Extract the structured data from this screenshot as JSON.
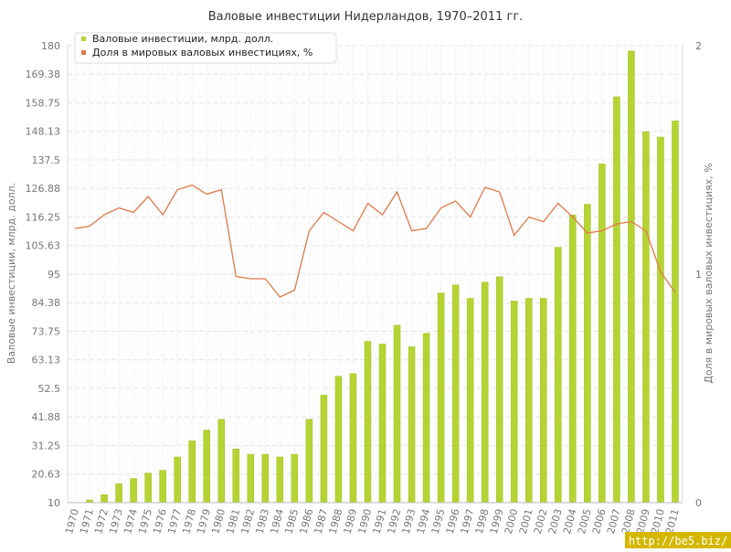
{
  "chart_data": {
    "type": "bar",
    "title": "Валовые инвестиции Нидерландов, 1970–2011 гг.",
    "xlabel": "",
    "ylabel": "Валовые инвестиции, млрд. долл.",
    "y2label": "Доля в мировых валовых инвестициях, %",
    "categories": [
      "1970",
      "1971",
      "1972",
      "1973",
      "1974",
      "1975",
      "1976",
      "1977",
      "1978",
      "1979",
      "1980",
      "1981",
      "1982",
      "1983",
      "1984",
      "1985",
      "1986",
      "1987",
      "1988",
      "1989",
      "1990",
      "1991",
      "1992",
      "1993",
      "1994",
      "1995",
      "1996",
      "1997",
      "1998",
      "1999",
      "2000",
      "2001",
      "2002",
      "2003",
      "2004",
      "2005",
      "2006",
      "2007",
      "2008",
      "2009",
      "2010",
      "2011"
    ],
    "ylim": [
      10,
      180
    ],
    "y2lim": [
      0,
      2
    ],
    "yticks": [
      "10",
      "20.63",
      "31.25",
      "41.88",
      "52.5",
      "63.13",
      "73.75",
      "84.38",
      "95",
      "105.63",
      "116.25",
      "126.88",
      "137.5",
      "148.13",
      "158.75",
      "169.38",
      "180"
    ],
    "y2ticks": [
      "0",
      "1",
      "2"
    ],
    "grid": true,
    "legend_position": "top-left",
    "series": [
      {
        "name": "Валовые инвестиции, млрд. долл.",
        "type": "bar",
        "axis": "left",
        "color": "#b5d433",
        "values": [
          9,
          11,
          13,
          17,
          19,
          21,
          22,
          27,
          33,
          37,
          41,
          30,
          28,
          28,
          27,
          28,
          41,
          50,
          57,
          58,
          70,
          69,
          76,
          68,
          73,
          88,
          91,
          86,
          92,
          94,
          85,
          86,
          86,
          105,
          117,
          121,
          136,
          161,
          178,
          148,
          146,
          152
        ]
      },
      {
        "name": "Доля в мировых валовых инвестициях, %",
        "type": "line",
        "axis": "right",
        "color": "#e07a4a",
        "values": [
          1.2,
          1.21,
          1.26,
          1.29,
          1.27,
          1.34,
          1.26,
          1.37,
          1.39,
          1.35,
          1.37,
          0.99,
          0.98,
          0.98,
          0.9,
          0.93,
          1.19,
          1.27,
          1.23,
          1.19,
          1.31,
          1.26,
          1.36,
          1.19,
          1.2,
          1.29,
          1.32,
          1.25,
          1.38,
          1.36,
          1.17,
          1.25,
          1.23,
          1.31,
          1.25,
          1.18,
          1.19,
          1.22,
          1.23,
          1.19,
          1.01,
          0.92
        ]
      }
    ]
  },
  "watermark": "http://be5.biz/"
}
